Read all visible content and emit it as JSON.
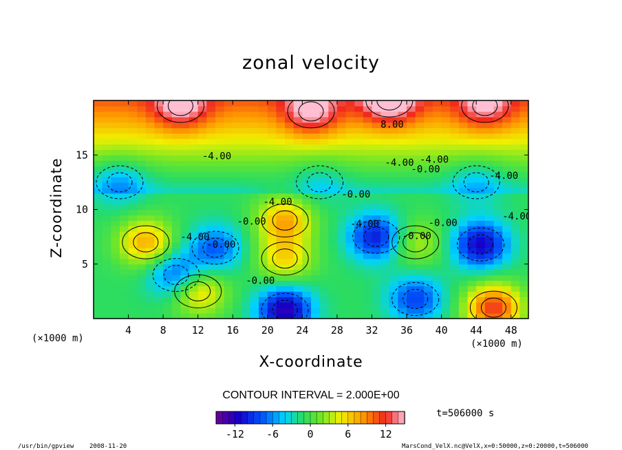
{
  "chart_data": {
    "type": "heatmap",
    "title": "zonal velocity",
    "xlabel": "X-coordinate",
    "ylabel": "Z-coordinate",
    "x_unit": "(×1000 m)",
    "x_unit_left": "(×1000 m)",
    "xlim": [
      0,
      50
    ],
    "ylim": [
      0,
      20
    ],
    "x_ticks": [
      4,
      8,
      12,
      16,
      20,
      24,
      28,
      32,
      36,
      40,
      44,
      48
    ],
    "y_ticks": [
      5,
      10,
      15
    ],
    "contour_interval": "CONTOUR INTERVAL = 2.000E+00",
    "contour_labels": [
      "8.00",
      "-4.00",
      "-4.00",
      "-0.00",
      "-0.00",
      "-4.00",
      "-4.00",
      "-4.00",
      "-4.00",
      "-0.00",
      "-0.00",
      "-4.00",
      "-0.00",
      "-4.00",
      "-0.00",
      "-0.00"
    ],
    "colorbar": {
      "min": -15,
      "max": 15,
      "ticks": [
        -12,
        -6,
        0,
        6,
        12
      ]
    },
    "field_features": [
      {
        "x": 34,
        "z": 20,
        "value": 14
      },
      {
        "x": 10,
        "z": 19.5,
        "value": 12
      },
      {
        "x": 45,
        "z": 19.5,
        "value": 11
      },
      {
        "x": 25,
        "z": 19,
        "value": 12
      },
      {
        "x": 22,
        "z": 9,
        "value": 8
      },
      {
        "x": 22,
        "z": 5.5,
        "value": 6
      },
      {
        "x": 6,
        "z": 7,
        "value": 8
      },
      {
        "x": 12,
        "z": 2.5,
        "value": 7
      },
      {
        "x": 46,
        "z": 1,
        "value": 12
      },
      {
        "x": 37,
        "z": 7,
        "value": 4
      },
      {
        "x": 32.5,
        "z": 7.5,
        "value": -10
      },
      {
        "x": 44.5,
        "z": 6.8,
        "value": -11
      },
      {
        "x": 22,
        "z": 0.8,
        "value": -12
      },
      {
        "x": 14,
        "z": 6.5,
        "value": -7
      },
      {
        "x": 9.5,
        "z": 4,
        "value": -8
      },
      {
        "x": 3,
        "z": 12.5,
        "value": -5
      },
      {
        "x": 44,
        "z": 12.5,
        "value": -4
      },
      {
        "x": 26,
        "z": 12.5,
        "value": -3
      },
      {
        "x": 37,
        "z": 1.8,
        "value": -8
      }
    ]
  },
  "footer": {
    "time": "t=506000 s",
    "program": "/usr/bin/gpview",
    "date": "2008-11-20",
    "source": "MarsCond_VelX.nc@VelX,x=0:50000,z=0:20000,t=506000"
  },
  "colors": {
    "background": "#ffffff",
    "axis": "#000000"
  }
}
